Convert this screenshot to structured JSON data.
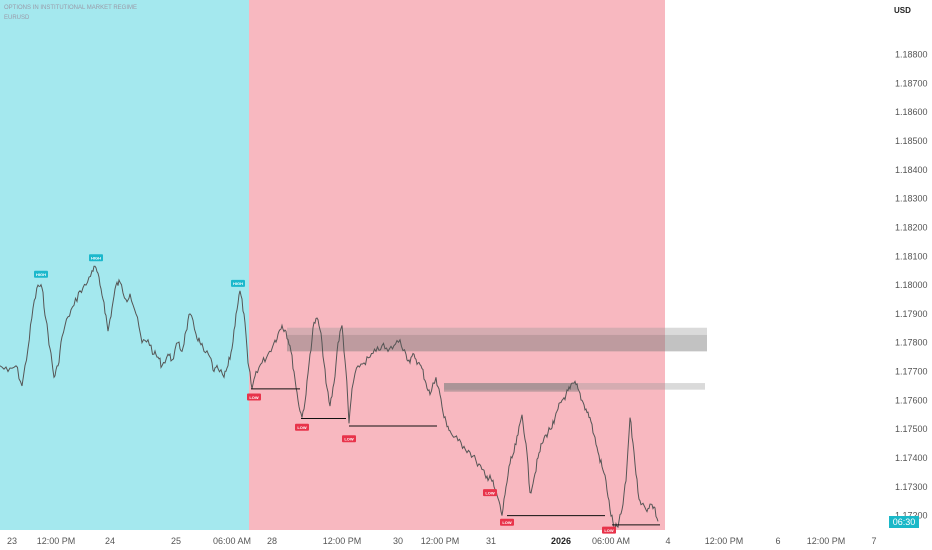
{
  "legend": {
    "line1": "OPTIONS IN INSTITUTIONAL MARKET REGIME",
    "line2": "EURUSD"
  },
  "chart_data": {
    "type": "line",
    "y_unit": "USD",
    "ylim": [
      1.1715,
      1.1892
    ],
    "y_ticks": [
      "1.18800",
      "1.18700",
      "1.18600",
      "1.18500",
      "1.18400",
      "1.18300",
      "1.18200",
      "1.18100",
      "1.18000",
      "1.17900",
      "1.17800",
      "1.17700",
      "1.17600",
      "1.17500",
      "1.17400",
      "1.17300",
      "1.17200"
    ],
    "x_ticks": [
      {
        "label": "23",
        "bold": false
      },
      {
        "label": "12:00 PM",
        "bold": false
      },
      {
        "label": "24",
        "bold": false
      },
      {
        "label": "25",
        "bold": false
      },
      {
        "label": "06:00 AM",
        "bold": false
      },
      {
        "label": "28",
        "bold": false
      },
      {
        "label": "12:00 PM",
        "bold": false
      },
      {
        "label": "30",
        "bold": false
      },
      {
        "label": "12:00 PM",
        "bold": false
      },
      {
        "label": "31",
        "bold": false
      },
      {
        "label": "2026",
        "bold": true
      },
      {
        "label": "06:00 AM",
        "bold": false
      },
      {
        "label": "4",
        "bold": false
      },
      {
        "label": "12:00 PM",
        "bold": false
      },
      {
        "label": "6",
        "bold": false
      },
      {
        "label": "12:00 PM",
        "bold": false
      },
      {
        "label": "7",
        "bold": false
      }
    ],
    "last_price_tag": "06:30",
    "regimes": [
      {
        "name": "bullish",
        "color": "#a4e8ee"
      },
      {
        "name": "bearish",
        "color": "#f8b8c0"
      }
    ],
    "series": [
      {
        "color": "#555555",
        "points": [
          [
            0,
            1.1772
          ],
          [
            8,
            1.177
          ],
          [
            16,
            1.1772
          ],
          [
            22,
            1.1765
          ],
          [
            28,
            1.1778
          ],
          [
            33,
            1.1792
          ],
          [
            38,
            1.18
          ],
          [
            42,
            1.1799
          ],
          [
            46,
            1.1788
          ],
          [
            50,
            1.1778
          ],
          [
            54,
            1.1768
          ],
          [
            58,
            1.1772
          ],
          [
            62,
            1.1782
          ],
          [
            68,
            1.1789
          ],
          [
            74,
            1.1793
          ],
          [
            80,
            1.1798
          ],
          [
            86,
            1.18
          ],
          [
            92,
            1.1805
          ],
          [
            96,
            1.1806
          ],
          [
            100,
            1.18
          ],
          [
            104,
            1.1794
          ],
          [
            108,
            1.1784
          ],
          [
            112,
            1.1792
          ],
          [
            116,
            1.18
          ],
          [
            120,
            1.1801
          ],
          [
            126,
            1.1795
          ],
          [
            130,
            1.1797
          ],
          [
            136,
            1.179
          ],
          [
            142,
            1.178
          ],
          [
            148,
            1.1781
          ],
          [
            154,
            1.1776
          ],
          [
            158,
            1.1775
          ],
          [
            162,
            1.1772
          ],
          [
            168,
            1.1776
          ],
          [
            172,
            1.1774
          ],
          [
            178,
            1.178
          ],
          [
            182,
            1.1777
          ],
          [
            186,
            1.1784
          ],
          [
            190,
            1.179
          ],
          [
            196,
            1.1783
          ],
          [
            200,
            1.178
          ],
          [
            204,
            1.1777
          ],
          [
            210,
            1.1775
          ],
          [
            214,
            1.177
          ],
          [
            218,
            1.1771
          ],
          [
            224,
            1.1768
          ],
          [
            228,
            1.1772
          ],
          [
            232,
            1.1778
          ],
          [
            236,
            1.179
          ],
          [
            240,
            1.1798
          ],
          [
            244,
            1.179
          ],
          [
            248,
            1.1773
          ],
          [
            252,
            1.1764
          ],
          [
            256,
            1.177
          ],
          [
            262,
            1.1773
          ],
          [
            268,
            1.1776
          ],
          [
            274,
            1.178
          ],
          [
            278,
            1.1783
          ],
          [
            282,
            1.1786
          ],
          [
            286,
            1.1784
          ],
          [
            290,
            1.1779
          ],
          [
            294,
            1.177
          ],
          [
            298,
            1.176
          ],
          [
            302,
            1.1754
          ],
          [
            306,
            1.1762
          ],
          [
            310,
            1.1776
          ],
          [
            314,
            1.1787
          ],
          [
            318,
            1.1788
          ],
          [
            322,
            1.178
          ],
          [
            326,
            1.1766
          ],
          [
            330,
            1.1758
          ],
          [
            334,
            1.1766
          ],
          [
            338,
            1.178
          ],
          [
            342,
            1.1786
          ],
          [
            346,
            1.177
          ],
          [
            349,
            1.1752
          ],
          [
            352,
            1.1764
          ],
          [
            358,
            1.1772
          ],
          [
            364,
            1.1773
          ],
          [
            370,
            1.1775
          ],
          [
            376,
            1.1777
          ],
          [
            382,
            1.1779
          ],
          [
            388,
            1.1777
          ],
          [
            394,
            1.1779
          ],
          [
            400,
            1.1781
          ],
          [
            406,
            1.1776
          ],
          [
            410,
            1.1773
          ],
          [
            414,
            1.1776
          ],
          [
            418,
            1.1773
          ],
          [
            422,
            1.1771
          ],
          [
            426,
            1.1766
          ],
          [
            430,
            1.1762
          ],
          [
            436,
            1.1768
          ],
          [
            440,
            1.1762
          ],
          [
            444,
            1.1754
          ],
          [
            448,
            1.1751
          ],
          [
            452,
            1.1748
          ],
          [
            458,
            1.1746
          ],
          [
            464,
            1.1744
          ],
          [
            470,
            1.1742
          ],
          [
            476,
            1.1739
          ],
          [
            482,
            1.1736
          ],
          [
            486,
            1.1733
          ],
          [
            490,
            1.1734
          ],
          [
            494,
            1.173
          ],
          [
            498,
            1.1726
          ],
          [
            502,
            1.172
          ],
          [
            506,
            1.173
          ],
          [
            510,
            1.1738
          ],
          [
            514,
            1.1742
          ],
          [
            518,
            1.1748
          ],
          [
            522,
            1.1755
          ],
          [
            526,
            1.1745
          ],
          [
            530,
            1.1728
          ],
          [
            534,
            1.1733
          ],
          [
            538,
            1.174
          ],
          [
            542,
            1.1745
          ],
          [
            546,
            1.1748
          ],
          [
            550,
            1.175
          ],
          [
            554,
            1.1752
          ],
          [
            558,
            1.1757
          ],
          [
            562,
            1.176
          ],
          [
            566,
            1.1762
          ],
          [
            570,
            1.1764
          ],
          [
            574,
            1.1766
          ],
          [
            578,
            1.1764
          ],
          [
            582,
            1.176
          ],
          [
            586,
            1.1757
          ],
          [
            590,
            1.1754
          ],
          [
            594,
            1.1748
          ],
          [
            598,
            1.1742
          ],
          [
            602,
            1.1737
          ],
          [
            606,
            1.1732
          ],
          [
            610,
            1.1722
          ],
          [
            614,
            1.1716
          ],
          [
            618,
            1.1716
          ],
          [
            622,
            1.1722
          ],
          [
            626,
            1.1732
          ],
          [
            630,
            1.1754
          ],
          [
            634,
            1.1742
          ],
          [
            638,
            1.1728
          ],
          [
            642,
            1.1724
          ],
          [
            646,
            1.1722
          ],
          [
            650,
            1.1724
          ],
          [
            654,
            1.1723
          ],
          [
            658,
            1.1718
          ]
        ]
      }
    ],
    "supply_zones": [
      {
        "x0": 287,
        "x1": 707,
        "y_top": 1.17852,
        "y_bot": 1.17827,
        "style": "light"
      },
      {
        "x0": 287,
        "x1": 707,
        "y_top": 1.17827,
        "y_bot": 1.1777,
        "style": "dark"
      },
      {
        "x0": 444,
        "x1": 705,
        "y_top": 1.1766,
        "y_bot": 1.17637,
        "style": "light"
      },
      {
        "x0": 444,
        "x1": 578,
        "y_top": 1.1766,
        "y_bot": 1.1763,
        "style": "dark"
      }
    ],
    "swing_lows": [
      {
        "x0": 251,
        "x1": 300,
        "y": 1.1764
      },
      {
        "x0": 301,
        "x1": 346,
        "y": 1.17537
      },
      {
        "x0": 349,
        "x1": 437,
        "y": 1.17511
      },
      {
        "x0": 507,
        "x1": 605,
        "y": 1.172
      },
      {
        "x0": 612,
        "x1": 660,
        "y": 1.17168
      }
    ],
    "pivot_markers": [
      {
        "type": "high",
        "x": 41,
        "y": 1.18036,
        "text": "HIGH"
      },
      {
        "type": "high",
        "x": 96,
        "y": 1.18093,
        "text": "HIGH"
      },
      {
        "type": "high",
        "x": 238,
        "y": 1.18004,
        "text": "HIGH"
      },
      {
        "type": "low",
        "x": 254,
        "y": 1.1761,
        "text": "LOW"
      },
      {
        "type": "low",
        "x": 302,
        "y": 1.17505,
        "text": "LOW"
      },
      {
        "type": "low",
        "x": 349,
        "y": 1.17465,
        "text": "LOW"
      },
      {
        "type": "low",
        "x": 490,
        "y": 1.17278,
        "text": "LOW"
      },
      {
        "type": "low",
        "x": 507,
        "y": 1.17175,
        "text": "LOW"
      },
      {
        "type": "low",
        "x": 609,
        "y": 1.17148,
        "text": "LOW"
      }
    ],
    "x_tick_positions": [
      12,
      56,
      110,
      176,
      232,
      272,
      342,
      398,
      440,
      491,
      561,
      611,
      668,
      724,
      778,
      826,
      874
    ]
  }
}
